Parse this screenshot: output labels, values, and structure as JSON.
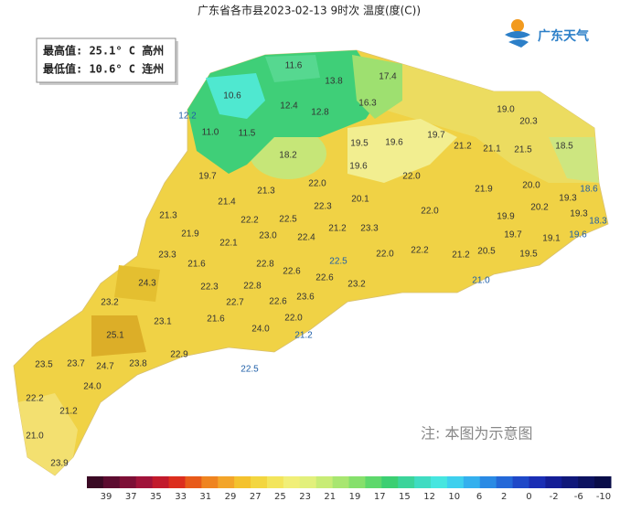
{
  "header": {
    "title": "广东省各市县2023-02-13 9时次 温度(度(C))"
  },
  "stats": [
    "最高值: 25.1° C 高州",
    "最低值: 10.6° C 连州"
  ],
  "brand": "广东天气",
  "labels": [
    "11.6",
    "13.8",
    "17.4",
    "10.6",
    "16.3",
    "12.4",
    "12.8",
    "12.2",
    "11.0",
    "11.5",
    "19.0",
    "20.3",
    "19.5",
    "19.6",
    "19.7",
    "21.2",
    "21.1",
    "21.5",
    "18.5",
    "18.2",
    "19.6",
    "19.7",
    "22.0",
    "21.9",
    "20.0",
    "18.6",
    "21.3",
    "22.0",
    "21.4",
    "20.1",
    "19.3",
    "21.3",
    "22.2",
    "22.5",
    "22.3",
    "22.0",
    "19.9",
    "20.2",
    "19.3",
    "18.3",
    "21.9",
    "23.0",
    "21.2",
    "23.3",
    "19.7",
    "19.1",
    "19.6",
    "22.1",
    "22.4",
    "23.3",
    "21.6",
    "22.8",
    "22.0",
    "22.2",
    "21.2",
    "20.5",
    "19.5",
    "22.6",
    "22.5",
    "24.3",
    "22.3",
    "22.8",
    "22.6",
    "21.0",
    "23.2",
    "23.6",
    "22.7",
    "22.6",
    "23.2",
    "23.1",
    "21.6",
    "22.0",
    "24.0",
    "25.1",
    "21.2",
    "22.9",
    "23.5",
    "23.7",
    "24.7",
    "23.8",
    "22.5",
    "24.0",
    "22.2",
    "21.2",
    "21.0",
    "23.9"
  ],
  "legend": {
    "labels": [
      "39",
      "37",
      "35",
      "33",
      "31",
      "29",
      "27",
      "25",
      "23",
      "21",
      "19",
      "17",
      "15",
      "12",
      "10",
      "6",
      "2",
      "0",
      "-2",
      "-6",
      "-10"
    ]
  },
  "note": "注: 本图为示意图"
}
